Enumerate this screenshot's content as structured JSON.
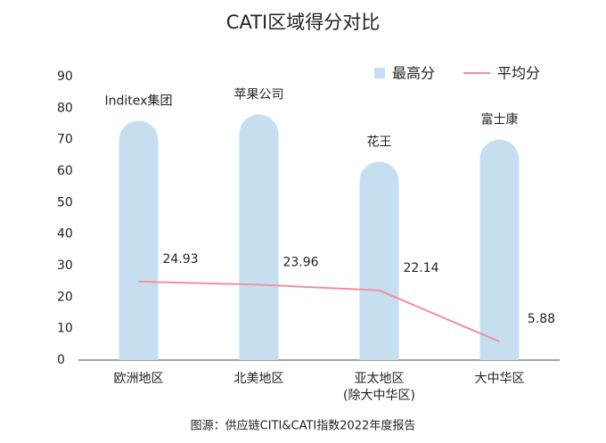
{
  "chart_data": {
    "type": "bar_line",
    "title": "CATI区域得分对比",
    "categories": [
      "欧洲地区",
      "北美地区",
      "亚太地区\n(除大中华区)",
      "大中华区"
    ],
    "bar_labels": [
      "Inditex集团",
      "苹果公司",
      "花王",
      "富士康"
    ],
    "series": [
      {
        "name": "最高分",
        "type": "bar",
        "color": "#c5dff0",
        "values": [
          76,
          78,
          63,
          70
        ]
      },
      {
        "name": "平均分",
        "type": "line",
        "color": "#f0909f",
        "values": [
          24.93,
          23.96,
          22.14,
          5.88
        ]
      }
    ],
    "ylim": [
      0,
      90
    ],
    "yticks": [
      0,
      10,
      20,
      30,
      40,
      50,
      60,
      70,
      80,
      90
    ],
    "legend": "top-right",
    "grid": false,
    "source": "图源：供应链CITI&CATI指数2022年度报告"
  }
}
